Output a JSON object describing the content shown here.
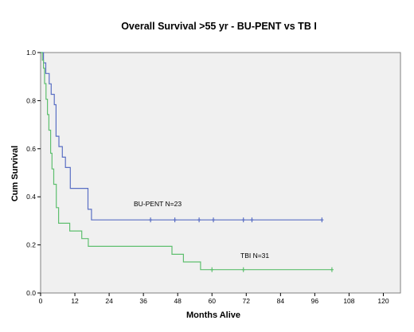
{
  "chart_data": {
    "type": "line",
    "title": "Overall Survival >55 yr  -  BU-PENT  vs TB I",
    "xlabel": "Months Alive",
    "ylabel": "Cum Survival",
    "xlim": [
      0,
      126
    ],
    "ylim": [
      0,
      1.0
    ],
    "xticks": [
      0,
      12,
      24,
      36,
      48,
      60,
      72,
      84,
      96,
      108,
      120
    ],
    "yticks": [
      0.0,
      0.2,
      0.4,
      0.6,
      0.8,
      1.0
    ],
    "ytick_labels": [
      "0.0",
      "0.2",
      "0.4",
      "0.6",
      "0.8",
      "1.0"
    ],
    "grid": false,
    "plot_background": "#f0f0f0",
    "series": [
      {
        "name": "BU-PENT",
        "annotation": "BU-PENT   N=23",
        "color": "#5a6fc4",
        "step_x": [
          0,
          1,
          1.8,
          3,
          3.7,
          4.8,
          5.4,
          6.4,
          7.6,
          8.7,
          10.4,
          16.6,
          17.8,
          98.5
        ],
        "step_y": [
          1.0,
          0.957,
          0.913,
          0.87,
          0.826,
          0.783,
          0.652,
          0.609,
          0.565,
          0.522,
          0.435,
          0.348,
          0.304,
          0.304
        ],
        "censored_x": [
          38.5,
          47.0,
          55.5,
          60.5,
          71.0,
          74.0,
          98.5
        ],
        "censored_y": 0.304
      },
      {
        "name": "TBI",
        "annotation": "TBI   N=31",
        "color": "#5fbf6f",
        "step_x": [
          0,
          0.6,
          1.0,
          1.4,
          1.9,
          2.4,
          2.9,
          3.5,
          4.0,
          4.6,
          5.5,
          6.3,
          10.2,
          14.4,
          16.7,
          46.0,
          50.0,
          56.0,
          102.0
        ],
        "step_y": [
          1.0,
          0.968,
          0.935,
          0.871,
          0.806,
          0.742,
          0.677,
          0.581,
          0.516,
          0.452,
          0.355,
          0.29,
          0.258,
          0.226,
          0.194,
          0.161,
          0.129,
          0.097,
          0.097
        ],
        "censored_x": [
          60.0,
          71.0,
          102.0
        ],
        "censored_y": 0.097
      }
    ]
  }
}
